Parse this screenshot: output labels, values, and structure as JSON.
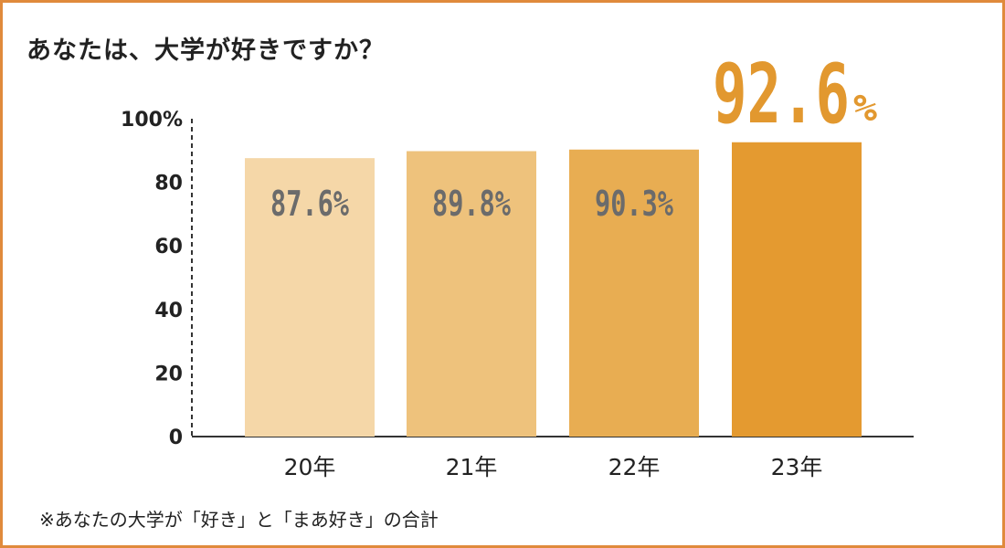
{
  "chart_data": {
    "type": "bar",
    "title": "あなたは、大学が好きですか？",
    "categories": [
      "20年",
      "21年",
      "22年",
      "23年"
    ],
    "values": [
      87.6,
      89.8,
      90.3,
      92.6
    ],
    "labels": [
      "87.6%",
      "89.8%",
      "90.3%",
      ""
    ],
    "highlight": {
      "number": "92.6",
      "unit": "%"
    },
    "yticks": [
      "100%",
      "80",
      "60",
      "40",
      "20",
      "0"
    ],
    "ytick_values": [
      100,
      80,
      60,
      40,
      20,
      0
    ],
    "ylim": [
      0,
      100
    ],
    "colors": [
      "#f5d7a8",
      "#eec27c",
      "#e8ad52",
      "#e49a30"
    ],
    "grid": false,
    "footnote": "※あなたの大学が「好き」と「まあ好き」の合計"
  },
  "frame_color": "#e08a3c"
}
